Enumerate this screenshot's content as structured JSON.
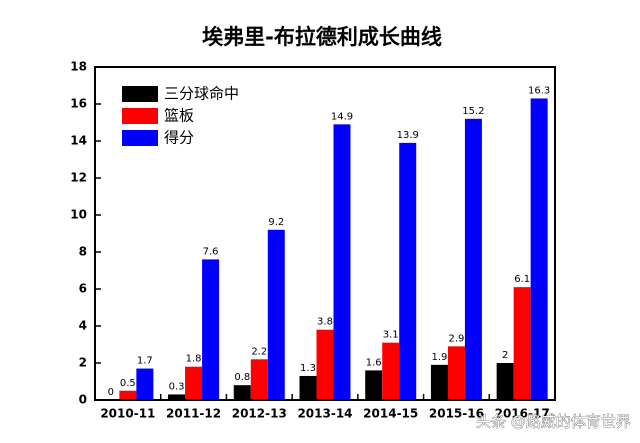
{
  "chart_data": {
    "type": "bar",
    "title": "埃弗里-布拉德利成长曲线",
    "categories": [
      "2010-11",
      "2011-12",
      "2012-13",
      "2013-14",
      "2014-15",
      "2015-16",
      "2016-17"
    ],
    "series": [
      {
        "name": "三分球命中",
        "color": "#000000",
        "values": [
          0,
          0.3,
          0.8,
          1.3,
          1.6,
          1.9,
          2
        ]
      },
      {
        "name": "篮板",
        "color": "#ff0000",
        "values": [
          0.5,
          1.8,
          2.2,
          3.8,
          3.1,
          2.9,
          6.1
        ]
      },
      {
        "name": "得分",
        "color": "#0000ff",
        "values": [
          1.7,
          7.6,
          9.2,
          14.9,
          13.9,
          15.2,
          16.3
        ]
      }
    ],
    "ylim": [
      0,
      18
    ],
    "yticks": [
      0,
      2,
      4,
      6,
      8,
      10,
      12,
      14,
      16,
      18
    ],
    "legend": "upper-left",
    "annotation": "头条 @路威的体育世界"
  }
}
